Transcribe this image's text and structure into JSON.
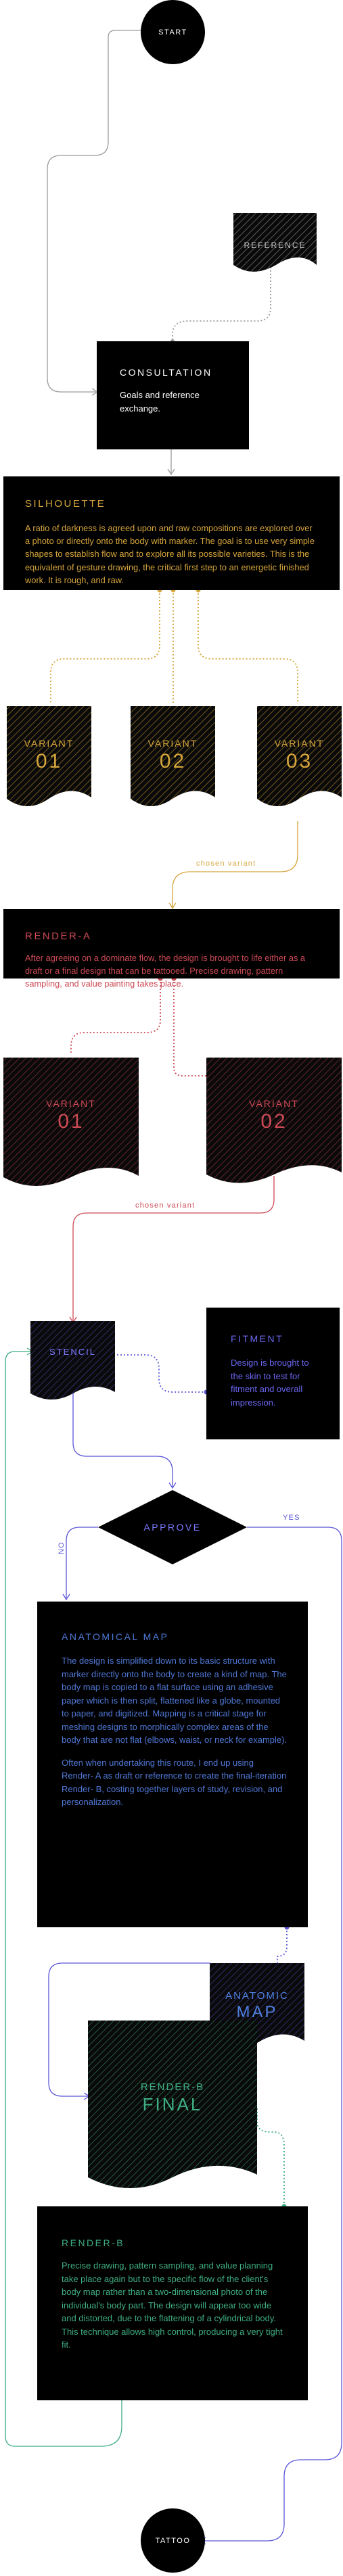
{
  "colors": {
    "gray": "#9a9a9a",
    "orange": "#d6a53c",
    "red": "#cc4a55",
    "blue": "#5a56d8",
    "green": "#3fae82"
  },
  "start": {
    "label": "START"
  },
  "reference": {
    "label": "REFERENCE"
  },
  "consultation": {
    "title": "CONSULTATION",
    "text": "Goals and reference exchange."
  },
  "silhouette": {
    "title": "SILHOUETTE",
    "text": "A ratio of darkness is agreed upon and raw compositions are explored over a photo or directly onto the body with marker. The goal is to use very simple shapes to establish flow and to explore all its possible varieties. This is the equivalent of gesture drawing, the critical first step to an energetic finished work. It is rough, and raw."
  },
  "silhouette_variants": [
    {
      "label": "VARIANT",
      "num": "01"
    },
    {
      "label": "VARIANT",
      "num": "02"
    },
    {
      "label": "VARIANT",
      "num": "03"
    }
  ],
  "chosen_variant_1": "chosen variant",
  "render_a": {
    "title": "RENDER-A",
    "text": "After agreeing on a dominate flow, the design is brought to life either as a draft or a final design that can be tattooed. Precise drawing, pattern sampling, and value painting takes place."
  },
  "render_a_variants": [
    {
      "label": "VARIANT",
      "num": "01"
    },
    {
      "label": "VARIANT",
      "num": "02"
    }
  ],
  "chosen_variant_2": "chosen variant",
  "stencil": {
    "label": "STENCIL"
  },
  "fitment": {
    "title": "FITMENT",
    "text": "Design is brought to the skin to test for fitment and overall impression."
  },
  "approve": {
    "label": "APPROVE",
    "no": "NO",
    "yes": "YES"
  },
  "anatomical_map": {
    "title": "ANATOMICAL MAP",
    "text1": "The design is simplified down to its basic structure with marker directly onto the body to create a kind of map. The body map is copied to a flat surface using an adhesive paper which is then split, flattened like a globe, mounted to paper, and digitized. Mapping is a critical stage for meshing designs to morphically complex areas of the body that are not flat (elbows, waist, or neck for example).",
    "text2": "Often when undertaking this route, I end up using Render- A as draft or reference to create the final-iteration Render- B, costing together layers of study, revision, and personalization."
  },
  "anatomic_map_doc": {
    "line1": "ANATOMIC",
    "line2": "MAP"
  },
  "render_b_final": {
    "line1": "RENDER-B",
    "line2": "FINAL"
  },
  "render_b": {
    "title": "RENDER-B",
    "text": "Precise drawing, pattern sampling, and value planning take place again but to the specific flow of the client's body map rather than a two-dimensional photo of the individual's body part. The design will appear too wide and distorted, due to the flattening of a cylindrical body. This technique allows high control, producing a very tight fit."
  },
  "tattoo": {
    "label": "TATTOO"
  }
}
